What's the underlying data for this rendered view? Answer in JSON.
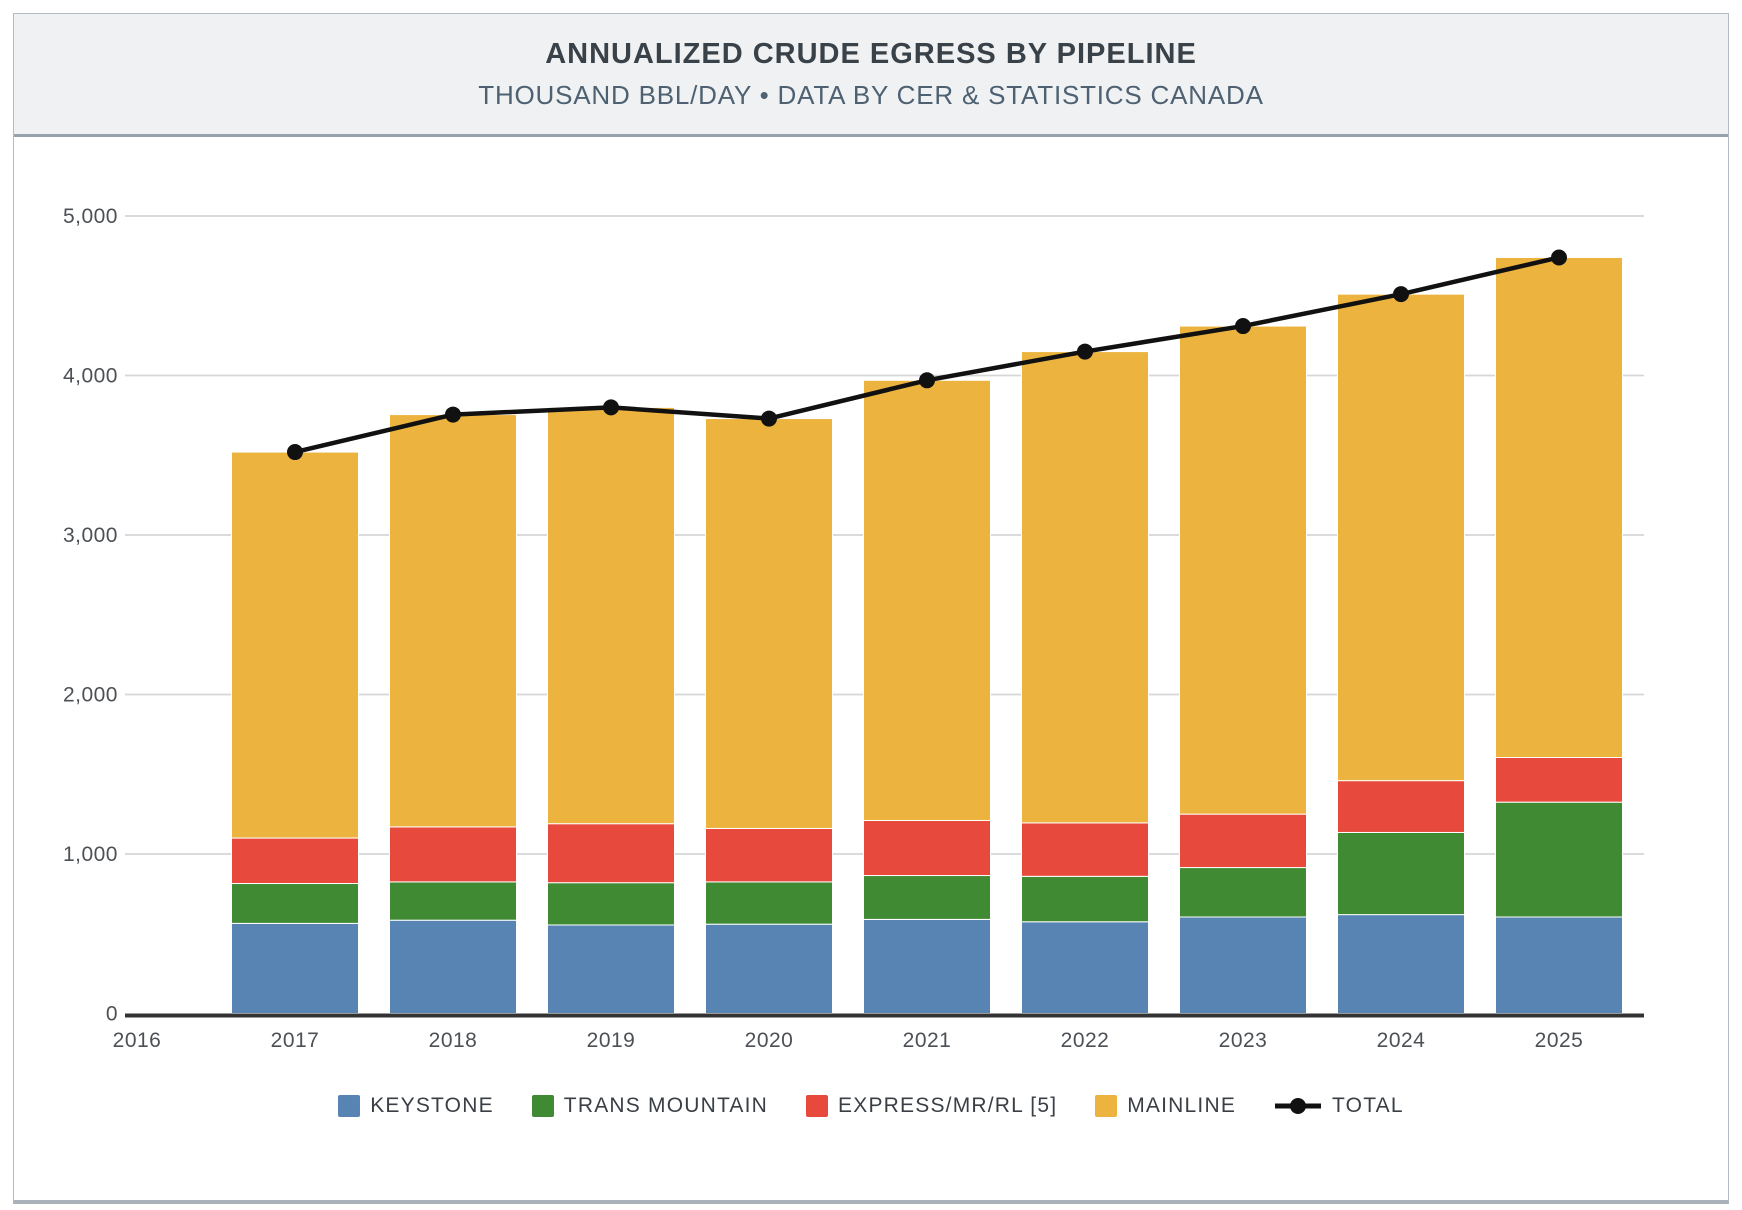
{
  "header": {
    "title": "ANNUALIZED CRUDE EGRESS BY PIPELINE",
    "subtitle": "THOUSAND BBL/DAY • DATA BY CER & STATISTICS CANADA"
  },
  "chart_data": {
    "type": "bar",
    "subtype": "stacked-bar-with-total-line",
    "title": "ANNUALIZED CRUDE EGRESS BY PIPELINE",
    "units": "THOUSAND BBL/DAY",
    "source": "DATA BY CER & STATISTICS CANADA",
    "categories": [
      "2017",
      "2018",
      "2019",
      "2020",
      "2021",
      "2022",
      "2023",
      "2024",
      "2025"
    ],
    "x_ticks": [
      "2016",
      "2017",
      "2018",
      "2019",
      "2020",
      "2021",
      "2022",
      "2023",
      "2024",
      "2025"
    ],
    "series": [
      {
        "name": "KEYSTONE",
        "color": "#5784b3",
        "values": [
          565,
          585,
          555,
          560,
          590,
          575,
          605,
          620,
          605
        ]
      },
      {
        "name": "TRANS MOUNTAIN",
        "color": "#3f8a32",
        "values": [
          250,
          240,
          265,
          265,
          275,
          285,
          310,
          515,
          720
        ]
      },
      {
        "name": "EXPRESS/MR/RL [5]",
        "color": "#e74a3d",
        "values": [
          285,
          345,
          370,
          335,
          345,
          335,
          335,
          325,
          280
        ]
      },
      {
        "name": "MAINLINE",
        "color": "#ecb43f",
        "values": [
          2420,
          2585,
          2610,
          2570,
          2760,
          2955,
          3060,
          3050,
          3135
        ]
      }
    ],
    "line": {
      "name": "TOTAL",
      "color": "#111111",
      "values": [
        3520,
        3755,
        3800,
        3730,
        3970,
        4150,
        4310,
        4510,
        4740
      ]
    },
    "y_ticks": [
      "0",
      "1,000",
      "2,000",
      "3,000",
      "4,000",
      "5,000"
    ],
    "ylim": [
      0,
      5000
    ],
    "xlabel": "",
    "ylabel": "",
    "grid": "horizontal",
    "legend_position": "bottom",
    "colors": {
      "gridline": "#d5d6d7",
      "axis": "#333333",
      "tick_text": "#4d5156"
    }
  }
}
